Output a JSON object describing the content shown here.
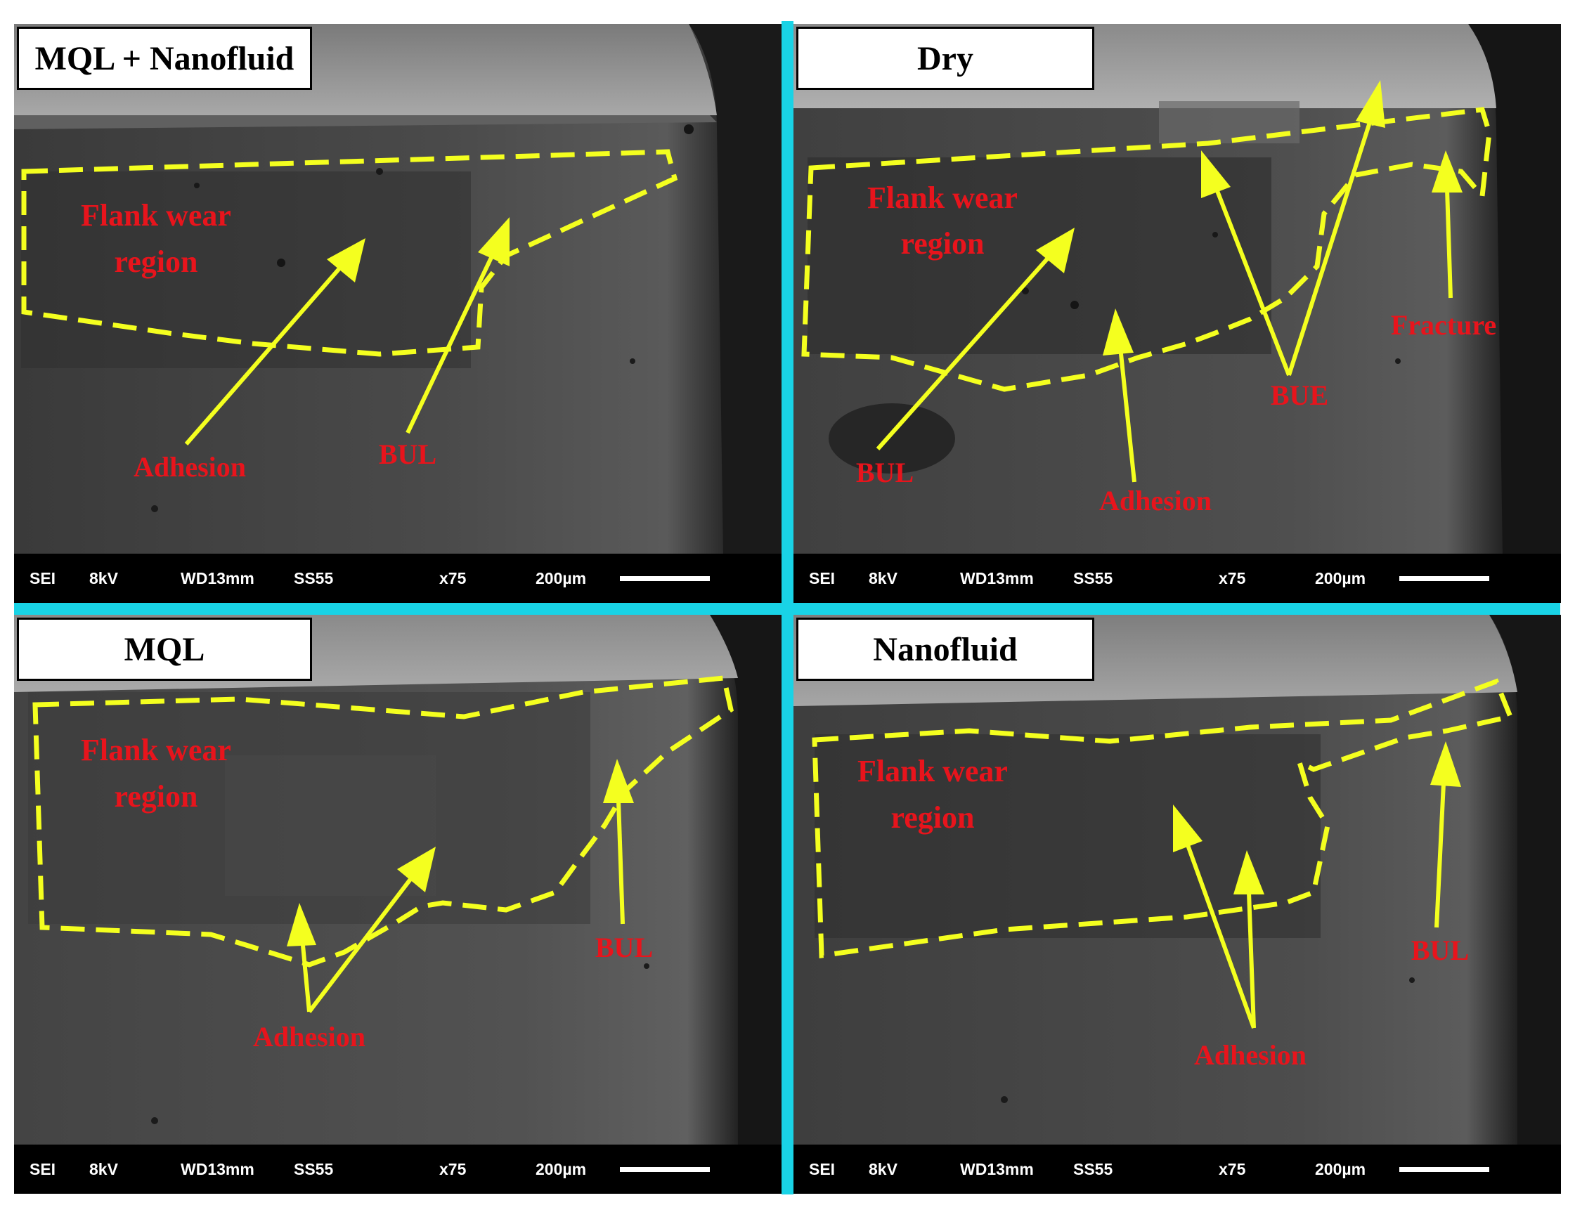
{
  "colors": {
    "divider": "#19d3e6",
    "annotation_outline": "#f4ff1f",
    "label_text": "#e8141c",
    "info_bar": "#000000"
  },
  "panels": [
    {
      "title": "MQL + Nanofluid",
      "region_label": [
        "Flank wear",
        "region"
      ],
      "labels": [
        "Adhesion",
        "BUL"
      ],
      "info": {
        "mode": "SEI",
        "kv": "8kV",
        "wd": "WD13mm",
        "ss": "SS55",
        "mag": "x75",
        "scale": "200µm"
      }
    },
    {
      "title": "Dry",
      "region_label": [
        "Flank wear",
        "region"
      ],
      "labels": [
        "BUL",
        "Adhesion",
        "BUE",
        "Fracture"
      ],
      "info": {
        "mode": "SEI",
        "kv": "8kV",
        "wd": "WD13mm",
        "ss": "SS55",
        "mag": "x75",
        "scale": "200µm"
      }
    },
    {
      "title": "MQL",
      "region_label": [
        "Flank wear",
        "region"
      ],
      "labels": [
        "Adhesion",
        "BUL"
      ],
      "info": {
        "mode": "SEI",
        "kv": "8kV",
        "wd": "WD13mm",
        "ss": "SS55",
        "mag": "x75",
        "scale": "200µm"
      }
    },
    {
      "title": "Nanofluid",
      "region_label": [
        "Flank wear",
        "region"
      ],
      "labels": [
        "Adhesion",
        "BUL"
      ],
      "info": {
        "mode": "SEI",
        "kv": "8kV",
        "wd": "WD13mm",
        "ss": "SS55",
        "mag": "x75",
        "scale": "200µm"
      }
    }
  ]
}
